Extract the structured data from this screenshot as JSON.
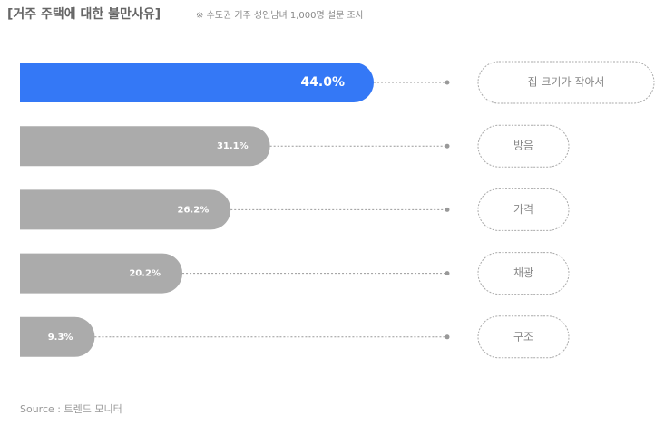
{
  "chart_data": {
    "type": "bar",
    "title": "[거주 주택에 대한 불만사유]",
    "subtitle": "※ 수도권 거주 성인남녀 1,000명 설문 조사",
    "source": "Source : 트렌드 모니터",
    "categories": [
      "집 크기가 작아서",
      "방음",
      "가격",
      "채광",
      "구조"
    ],
    "values": [
      44.0,
      31.1,
      26.2,
      20.2,
      9.3
    ],
    "value_labels": [
      "44.0%",
      "31.1%",
      "26.2%",
      "20.2%",
      "9.3%"
    ],
    "colors": [
      "#3478f6",
      "#ababab",
      "#ababab",
      "#ababab",
      "#ababab"
    ]
  }
}
